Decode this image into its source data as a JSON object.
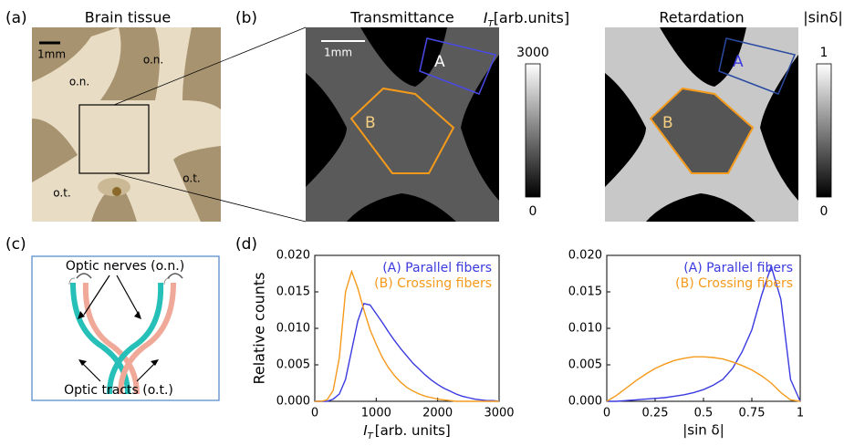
{
  "panel_labels": [
    "(a)",
    "(b)",
    "(c)",
    "(d)"
  ],
  "panel_a": {
    "title": "Brain tissue",
    "scale_bar": "1mm",
    "labels": [
      "o.n.",
      "o.n.",
      "o.t.",
      "o.t."
    ]
  },
  "panel_b": {
    "transmittance": {
      "title": "Transmittance",
      "scale_bar": "1mm",
      "regions": [
        "A",
        "B"
      ],
      "colorbar": {
        "symbol": "I",
        "subscript": "T",
        "unit": "[arb.units]",
        "max": "3000",
        "min": "0"
      }
    },
    "retardation": {
      "title": "Retardation",
      "regions": [
        "A",
        "B"
      ],
      "colorbar": {
        "label": "|sinδ|",
        "max": "1",
        "min": "0"
      }
    }
  },
  "panel_c": {
    "nerves": "Optic nerves (o.n.)",
    "tracts": "Optic tracts (o.t.)"
  },
  "chart_data": [
    {
      "type": "line",
      "y_label": "Relative counts",
      "x_label": {
        "symbol": "I",
        "subscript": "T",
        "unit": "[arb. units]"
      },
      "x": [
        0,
        100,
        200,
        300,
        400,
        500,
        600,
        700,
        800,
        900,
        1000,
        1100,
        1200,
        1300,
        1400,
        1500,
        1600,
        1700,
        1800,
        1900,
        2000,
        2100,
        2200,
        2300,
        2400,
        2500,
        2600,
        2700,
        2800,
        2900,
        3000
      ],
      "series": [
        {
          "name": "(A) Parallel fibers",
          "color": "#3a3ae0",
          "values": [
            0,
            0,
            0,
            0.0003,
            0.001,
            0.003,
            0.007,
            0.011,
            0.0134,
            0.0132,
            0.012,
            0.0108,
            0.0095,
            0.0083,
            0.0072,
            0.0062,
            0.0052,
            0.0044,
            0.0036,
            0.0029,
            0.0023,
            0.0018,
            0.0014,
            0.001,
            0.0007,
            0.0005,
            0.0003,
            0.0002,
            0.0001,
            0.0001,
            0
          ]
        },
        {
          "name": "(B) Crossing fibers",
          "color": "#f59a1b",
          "values": [
            0,
            0,
            0.0002,
            0.0015,
            0.006,
            0.015,
            0.0178,
            0.0155,
            0.0125,
            0.0098,
            0.0078,
            0.006,
            0.0046,
            0.0035,
            0.0026,
            0.0019,
            0.0014,
            0.001,
            0.0007,
            0.0005,
            0.0003,
            0.0002,
            0.0001,
            0,
            0,
            0,
            0,
            0,
            0,
            0,
            0
          ]
        }
      ],
      "xlim": [
        0,
        3000
      ],
      "xticks": [
        0,
        1000,
        2000,
        3000
      ],
      "ylim": [
        0,
        0.02
      ],
      "yticks": [
        {
          "value": 0,
          "label": "0.000"
        },
        {
          "value": 0.005,
          "label": "0.005"
        },
        {
          "value": 0.01,
          "label": "0.010"
        },
        {
          "value": 0.015,
          "label": "0.015"
        },
        {
          "value": 0.02,
          "label": "0.020"
        }
      ],
      "legend": "upper right"
    },
    {
      "type": "line",
      "x_label": "|sin δ|",
      "x": [
        0,
        0.05,
        0.1,
        0.15,
        0.2,
        0.25,
        0.3,
        0.35,
        0.4,
        0.45,
        0.5,
        0.55,
        0.6,
        0.65,
        0.7,
        0.75,
        0.8,
        0.85,
        0.9,
        0.95,
        1
      ],
      "series": [
        {
          "name": "(A) Parallel fibers",
          "color": "#3a3ae0",
          "values": [
            0,
            0,
            0.0001,
            0.0002,
            0.0003,
            0.0004,
            0.0005,
            0.0007,
            0.0009,
            0.0012,
            0.0016,
            0.0022,
            0.003,
            0.0045,
            0.0068,
            0.0098,
            0.0145,
            0.0185,
            0.014,
            0.003,
            0
          ]
        },
        {
          "name": "(B) Crossing fibers",
          "color": "#f59a1b",
          "values": [
            0,
            0.0008,
            0.0018,
            0.0028,
            0.0037,
            0.0045,
            0.0051,
            0.0056,
            0.0059,
            0.0061,
            0.0061,
            0.006,
            0.0058,
            0.0054,
            0.0049,
            0.0043,
            0.0035,
            0.0025,
            0.0012,
            0.0002,
            0
          ]
        }
      ],
      "xlim": [
        0,
        1
      ],
      "xticks": [
        0,
        0.25,
        0.5,
        0.75,
        1
      ],
      "ylim": [
        0,
        0.02
      ],
      "yticks": [
        {
          "value": 0,
          "label": "0.000"
        },
        {
          "value": 0.005,
          "label": "0.005"
        },
        {
          "value": 0.01,
          "label": "0.010"
        },
        {
          "value": 0.015,
          "label": "0.015"
        },
        {
          "value": 0.02,
          "label": "0.020"
        }
      ],
      "legend": "upper right"
    }
  ]
}
